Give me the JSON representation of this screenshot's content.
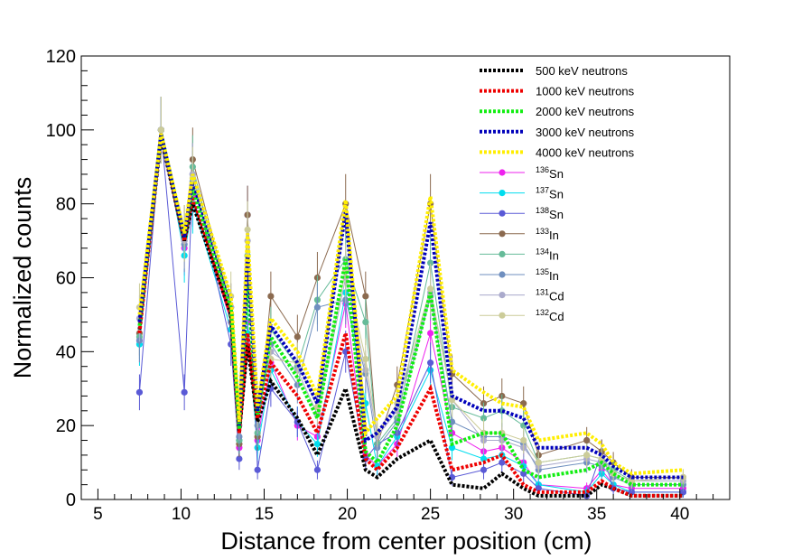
{
  "chart_data": {
    "type": "line",
    "title": "",
    "xlabel": "Distance from center position (cm)",
    "ylabel": "Normalized counts",
    "xlim": [
      4,
      43
    ],
    "ylim": [
      0,
      120
    ],
    "x_ticks": [
      5,
      10,
      15,
      20,
      25,
      30,
      35,
      40
    ],
    "y_ticks": [
      0,
      20,
      40,
      60,
      80,
      100,
      120
    ],
    "grid": false,
    "legend_position": "top-right",
    "x": [
      7.5,
      8.8,
      10.2,
      10.7,
      13.0,
      13.5,
      14.0,
      14.6,
      15.4,
      17.0,
      18.2,
      19.9,
      21.1,
      21.8,
      23.0,
      25.0,
      26.3,
      28.2,
      29.3,
      30.6,
      31.5,
      34.4,
      35.3,
      36.0,
      37.1,
      40.2
    ],
    "series": [
      {
        "name": "500 keV neutrons",
        "label": "500 keV neutrons",
        "kind": "dashed",
        "color": "#000000",
        "values": [
          46,
          98,
          70,
          80,
          50,
          18,
          42,
          21,
          32,
          22,
          12,
          30,
          8,
          6,
          11,
          16,
          4,
          3,
          7,
          3,
          1,
          1,
          4,
          3,
          1,
          1
        ]
      },
      {
        "name": "1000 keV neutrons",
        "label": "1000 keV neutrons",
        "kind": "dashed",
        "color": "#ee0000",
        "values": [
          45,
          99,
          70,
          82,
          50,
          18,
          45,
          22,
          37,
          28,
          18,
          45,
          11,
          8,
          14,
          30,
          8,
          10,
          12,
          4,
          2,
          2,
          5,
          3,
          1,
          1
        ]
      },
      {
        "name": "2000 keV neutrons",
        "label": "2000 keV neutrons",
        "kind": "dashed",
        "color": "#11ee11",
        "values": [
          47,
          99,
          71,
          84,
          52,
          19,
          58,
          23,
          44,
          33,
          22,
          65,
          13,
          10,
          20,
          56,
          15,
          18,
          18,
          8,
          6,
          8,
          10,
          7,
          4,
          4
        ]
      },
      {
        "name": "3000 keV neutrons",
        "label": "3000 keV neutrons",
        "kind": "dashed",
        "color": "#0000bb",
        "values": [
          48,
          99,
          71,
          86,
          54,
          20,
          66,
          24,
          47,
          37,
          26,
          78,
          16,
          18,
          25,
          75,
          28,
          24,
          24,
          22,
          14,
          14,
          12,
          9,
          6,
          6
        ]
      },
      {
        "name": "4000 keV neutrons",
        "label": "4000 keV neutrons",
        "kind": "dashed",
        "color": "#ffee00",
        "values": [
          50,
          99,
          72,
          88,
          55,
          21,
          72,
          25,
          49,
          40,
          28,
          81,
          18,
          22,
          28,
          82,
          35,
          29,
          26,
          25,
          16,
          18,
          15,
          10,
          7,
          8
        ]
      },
      {
        "name": "136Sn",
        "label_main": "Sn",
        "label_sup": "136",
        "kind": "marker",
        "color": "#ee22ee",
        "values": [
          43,
          100,
          68,
          82,
          48,
          14,
          48,
          16,
          37,
          20,
          17,
          53,
          12,
          9,
          15,
          45,
          18,
          13,
          14,
          10,
          4,
          3,
          8,
          4,
          3,
          3
        ]
      },
      {
        "name": "137Sn",
        "label_main": "Sn",
        "label_sup": "137",
        "kind": "marker",
        "color": "#00ddee",
        "values": [
          42,
          100,
          66,
          80,
          46,
          16,
          45,
          14,
          35,
          21,
          15,
          56,
          26,
          9,
          17,
          35,
          14,
          11,
          12,
          9,
          4,
          2,
          7,
          4,
          2,
          2
        ]
      },
      {
        "name": "138Sn",
        "label_main": "Sn",
        "label_sup": "138",
        "kind": "marker",
        "color": "#5a5ad6",
        "values": [
          29,
          100,
          29,
          88,
          42,
          11,
          77,
          8,
          30,
          21,
          8,
          40,
          11,
          15,
          18,
          37,
          6,
          8,
          10,
          7,
          3,
          1,
          13,
          3,
          2,
          2
        ]
      },
      {
        "name": "133In",
        "label_main": "In",
        "label_sup": "133",
        "kind": "marker",
        "color": "#8b6a4f",
        "values": [
          45,
          100,
          72,
          92,
          52,
          15,
          77,
          17,
          55,
          44,
          60,
          80,
          55,
          15,
          31,
          80,
          34,
          26,
          28,
          26,
          12,
          16,
          13,
          10,
          6,
          6
        ]
      },
      {
        "name": "134In",
        "label_main": "In",
        "label_sup": "134",
        "kind": "marker",
        "color": "#66bb99",
        "values": [
          44,
          100,
          70,
          90,
          50,
          16,
          66,
          18,
          46,
          36,
          54,
          65,
          48,
          15,
          22,
          64,
          25,
          22,
          24,
          20,
          10,
          12,
          11,
          8,
          5,
          5
        ]
      },
      {
        "name": "135In",
        "label_main": "In",
        "label_sup": "135",
        "kind": "marker",
        "color": "#6f8fbf",
        "values": [
          43,
          100,
          69,
          86,
          48,
          17,
          62,
          20,
          42,
          31,
          52,
          54,
          34,
          14,
          21,
          55,
          21,
          17,
          17,
          15,
          8,
          10,
          9,
          6,
          4,
          4
        ]
      },
      {
        "name": "131Cd",
        "label_main": "Cd",
        "label_sup": "131",
        "kind": "marker",
        "color": "#aaaacc",
        "values": [
          49,
          100,
          70,
          88,
          52,
          20,
          70,
          22,
          40,
          35,
          23,
          60,
          35,
          17,
          24,
          56,
          27,
          16,
          16,
          14,
          9,
          11,
          10,
          7,
          5,
          5
        ]
      },
      {
        "name": "132Cd",
        "label_main": "Cd",
        "label_sup": "132",
        "kind": "marker",
        "color": "#cccc99",
        "values": [
          52,
          100,
          72,
          87,
          55,
          22,
          73,
          24,
          38,
          37,
          25,
          62,
          38,
          18,
          26,
          57,
          27,
          18,
          18,
          16,
          10,
          12,
          11,
          7,
          5,
          6
        ]
      }
    ]
  }
}
